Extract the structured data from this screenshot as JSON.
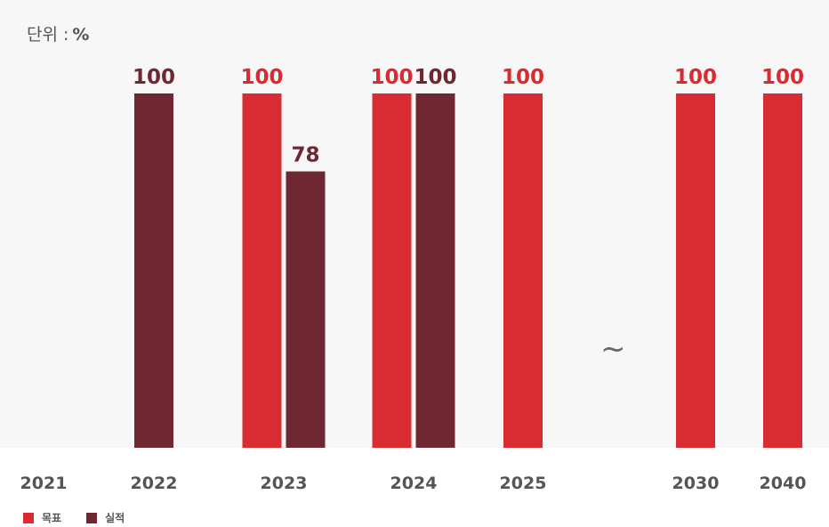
{
  "unit": {
    "label": "단위 :",
    "value": "%"
  },
  "gap_marker": "~",
  "colors": {
    "target": "#d92b32",
    "actual": "#6f2831",
    "background": "#f7f7f7",
    "text": "#555555"
  },
  "chart_data": {
    "type": "bar",
    "categories": [
      "2021",
      "2022",
      "2023",
      "2024",
      "2025",
      "2030",
      "2040"
    ],
    "series": [
      {
        "name": "목표",
        "color": "#d92b32",
        "values": [
          null,
          null,
          100,
          100,
          100,
          100,
          100
        ]
      },
      {
        "name": "실적",
        "color": "#6f2831",
        "values": [
          null,
          100,
          78,
          100,
          null,
          null,
          null
        ]
      }
    ],
    "ylim": [
      0,
      100
    ],
    "grid": false,
    "legend": "bottom-left",
    "axis_break_between": [
      "2025",
      "2030"
    ]
  }
}
